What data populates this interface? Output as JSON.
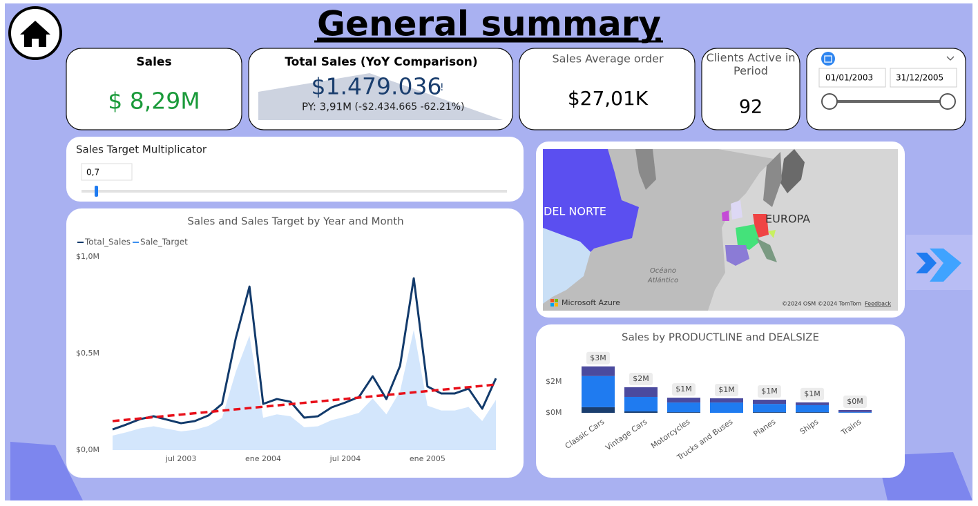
{
  "header": {
    "title": "General summary"
  },
  "cards": {
    "sales": {
      "title": "Sales",
      "value": "$ 8,29M"
    },
    "yoy": {
      "title": "Total Sales (YoY Comparison)",
      "value": "$1.479.036",
      "flag": "!",
      "previous": "PY: 3,91M",
      "change": "(-$2.434.665 -62.21%)"
    },
    "average": {
      "title": "Sales Average order",
      "value": "$27,01K"
    },
    "clients": {
      "title": "Clients Active in Period",
      "value": "92"
    }
  },
  "date_slicer": {
    "start": "01/01/2003",
    "end": "31/12/2005"
  },
  "multiplier_slicer": {
    "title": "Sales Target Multiplicator",
    "value": "0,7"
  },
  "map": {
    "labels": [
      "DEL NORTE",
      "EUROPA",
      "Océano",
      "Atlántico"
    ],
    "brand": "Microsoft Azure",
    "credits": "©2024 OSM  ©2024 TomTom",
    "feedback": "Feedback"
  },
  "chart_data": [
    {
      "type": "line",
      "title": "Sales and Sales Target by Year and Month",
      "categories": [
        null,
        null,
        null,
        null,
        null,
        "jul 2003",
        null,
        null,
        null,
        null,
        null,
        "ene 2004",
        null,
        null,
        null,
        null,
        null,
        "jul 2004",
        null,
        null,
        null,
        null,
        null,
        "ene 2005",
        null,
        null,
        null,
        null,
        null
      ],
      "series": [
        {
          "name": "Total_Sales",
          "color": "#123a6b",
          "values": [
            107000,
            132000,
            160000,
            175000,
            157000,
            139000,
            150000,
            179000,
            239000,
            579000,
            846000,
            239000,
            264000,
            250000,
            168000,
            175000,
            221000,
            246000,
            275000,
            382000,
            264000,
            436000,
            889000,
            329000,
            293000,
            293000,
            318000,
            214000,
            371000
          ]
        },
        {
          "name": "Sale_Target",
          "color": "#3b8ff0",
          "fill": "#d3e6fc",
          "values": [
            75000,
            92000,
            112000,
            123000,
            110000,
            97000,
            105000,
            125000,
            167000,
            405000,
            592000,
            167000,
            185000,
            175000,
            118000,
            123000,
            155000,
            172000,
            193000,
            267000,
            185000,
            305000,
            622000,
            230000,
            205000,
            205000,
            223000,
            150000,
            260000
          ]
        }
      ],
      "trend_line": {
        "color": "#e8101a",
        "values": [
          150000,
          339000
        ]
      },
      "ylim": [
        0,
        1000000
      ],
      "yticks": [
        {
          "value": 0,
          "label": "$0,0M"
        },
        {
          "value": 500000,
          "label": "$0,5M"
        },
        {
          "value": 1000000,
          "label": "$1,0M"
        }
      ]
    },
    {
      "type": "stacked_bar",
      "title": "Sales by PRODUCTLINE and DEALSIZE",
      "categories": [
        "Classic Cars",
        "Vintage Cars",
        "Motorcycles",
        "Trucks and Buses",
        "Planes",
        "Ships",
        "Trains"
      ],
      "series": [
        {
          "color": "#1a3e6e",
          "values": [
            360000,
            90000,
            40000,
            0,
            40000,
            40000,
            10000
          ]
        },
        {
          "color": "#1f7bf0",
          "values": [
            2000000,
            930000,
            620000,
            660000,
            530000,
            450000,
            40000
          ]
        },
        {
          "color": "#4b4a9e",
          "values": [
            620000,
            620000,
            310000,
            270000,
            270000,
            180000,
            130000
          ]
        }
      ],
      "total_labels": [
        "$3M",
        "$2M",
        "$1M",
        "$1M",
        "$1M",
        "$1M",
        "$0M"
      ],
      "ylim": [
        0,
        3900000
      ],
      "yticks": [
        {
          "value": 0,
          "label": "$0M"
        },
        {
          "value": 2000000,
          "label": "$2M"
        }
      ]
    }
  ]
}
